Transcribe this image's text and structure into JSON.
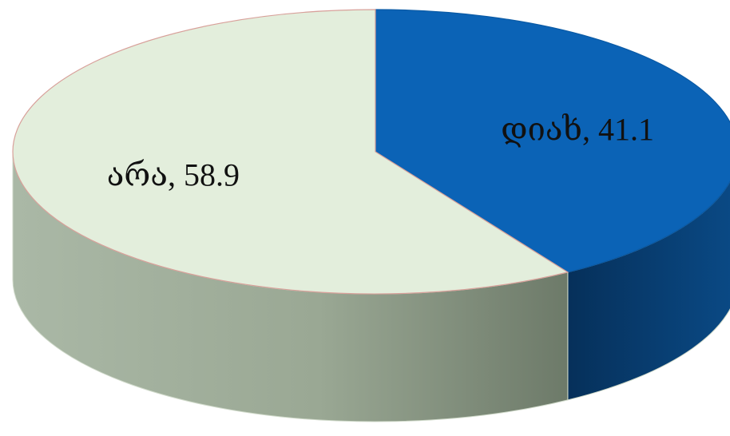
{
  "chart_data": {
    "type": "pie",
    "style": "3d",
    "title": "",
    "legend": "none",
    "slices": [
      {
        "label": "დიახ",
        "value": 41.1,
        "display": "დიახ, 41.1",
        "color": "#0B63B6",
        "side_color": "#063A6A"
      },
      {
        "label": "არა",
        "value": 58.9,
        "display": "არა, 58.9",
        "color": "#E3EEDC",
        "side_color": "#8C9A88"
      }
    ]
  }
}
